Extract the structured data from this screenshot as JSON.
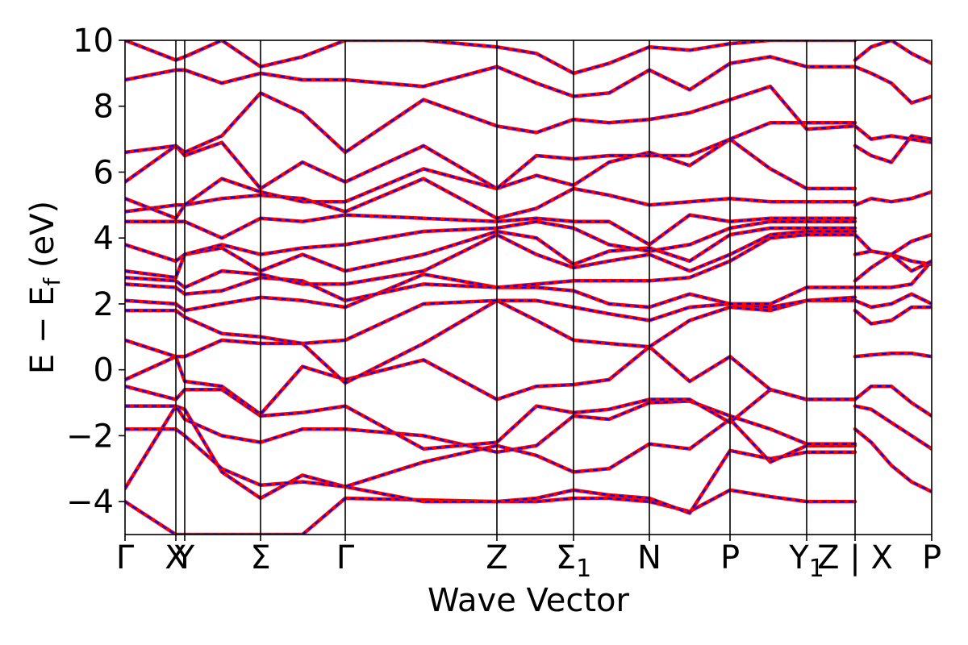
{
  "chart_data": {
    "type": "line",
    "xlabel": "Wave Vector",
    "ylabel": "E − E",
    "ylabel_sub": "f",
    "ylabel_unit": " (eV)",
    "ylim": [
      -5,
      10
    ],
    "yticks": [
      -4,
      -2,
      0,
      2,
      4,
      6,
      8,
      10
    ],
    "grid": false,
    "colors": {
      "dft": "#ff0000",
      "wannier": "#0000ff",
      "axis": "#000000"
    },
    "kpoints": [
      {
        "label": "Γ",
        "sub": "",
        "x": 0.0
      },
      {
        "label": "X",
        "sub": "",
        "x": 0.63
      },
      {
        "label": "Y",
        "sub": "",
        "x": 0.74
      },
      {
        "label": "Σ",
        "sub": "",
        "x": 1.68
      },
      {
        "label": "Γ",
        "sub": "",
        "x": 2.73
      },
      {
        "label": "Z",
        "sub": "",
        "x": 4.61
      },
      {
        "label": "Σ",
        "sub": "1",
        "x": 5.56
      },
      {
        "label": "N",
        "sub": "",
        "x": 6.5
      },
      {
        "label": "P",
        "sub": "",
        "x": 7.5
      },
      {
        "label": "Y",
        "sub": "1",
        "x": 8.45
      },
      {
        "label": "Z | X",
        "sub": "",
        "x": 9.05
      },
      {
        "label": "P",
        "sub": "",
        "x": 10.0
      }
    ],
    "xlim": [
      0,
      10
    ],
    "series": [
      {
        "x": [
          0,
          0.63,
          0.74,
          1.2,
          1.68,
          2.2,
          2.73,
          3.7,
          4.61,
          5.1,
          5.56,
          6.0,
          6.5,
          7.0,
          7.5,
          8.0,
          8.45,
          9.05
        ],
        "y": [
          -4.0,
          -5.0,
          -5.0,
          -5.0,
          -5.0,
          -5.0,
          -3.9,
          -3.95,
          -4.0,
          -4.0,
          -3.9,
          -3.9,
          -4.0,
          -4.3,
          -3.65,
          -3.85,
          -4.0,
          -4.0
        ]
      },
      {
        "x": [
          0,
          0.63,
          0.74,
          1.2,
          1.68,
          2.2,
          2.73,
          3.7,
          4.61,
          5.1,
          5.56,
          6.0,
          6.5,
          7.0,
          7.5,
          8.0,
          8.45,
          9.05
        ],
        "y": [
          -3.6,
          -1.1,
          -1.2,
          -3.1,
          -3.9,
          -3.2,
          -3.55,
          -4.0,
          -4.0,
          -3.9,
          -3.65,
          -3.8,
          -3.9,
          -4.35,
          -2.45,
          -2.7,
          -2.5,
          -2.5
        ]
      },
      {
        "x": [
          0,
          0.63,
          0.74,
          1.2,
          1.68,
          2.2,
          2.73,
          3.7,
          4.61,
          5.1,
          5.56,
          6.0,
          6.5,
          7.0,
          7.5,
          8.0,
          8.45,
          9.05
        ],
        "y": [
          -1.8,
          -1.8,
          -2.0,
          -3.0,
          -3.5,
          -3.4,
          -3.55,
          -2.8,
          -2.3,
          -2.6,
          -3.1,
          -3.0,
          -2.25,
          -2.4,
          -1.5,
          -2.8,
          -2.3,
          -2.3
        ]
      },
      {
        "x": [
          0,
          0.63,
          0.74,
          1.2,
          1.68,
          2.2,
          2.73,
          3.7,
          4.61,
          5.1,
          5.56,
          6.0,
          6.5,
          7.0,
          7.5,
          8.0,
          8.45,
          9.05
        ],
        "y": [
          -1.1,
          -1.1,
          -1.5,
          -2.0,
          -2.2,
          -1.8,
          -1.8,
          -2.0,
          -2.5,
          -2.3,
          -1.4,
          -1.5,
          -1.0,
          -0.95,
          -1.4,
          -1.8,
          -2.25,
          -2.25
        ]
      },
      {
        "x": [
          0,
          0.63,
          0.74,
          1.2,
          1.68,
          2.2,
          2.73,
          3.7,
          4.61,
          5.1,
          5.56,
          6.0,
          6.5,
          7.0,
          7.5,
          8.0,
          8.45,
          9.05
        ],
        "y": [
          -0.5,
          -0.9,
          -0.6,
          -0.6,
          -1.4,
          -1.3,
          -1.1,
          -2.4,
          -2.2,
          -1.1,
          -1.3,
          -1.2,
          -0.9,
          -0.9,
          -1.6,
          -0.6,
          -0.9,
          -0.9
        ]
      },
      {
        "x": [
          0,
          0.63,
          0.74,
          1.2,
          1.68,
          2.2,
          2.73,
          3.7,
          4.61,
          5.1,
          5.56,
          6.0,
          6.5,
          7.0,
          7.5,
          8.0,
          8.45,
          9.05
        ],
        "y": [
          -0.3,
          0.4,
          -0.35,
          -0.5,
          -1.35,
          0.1,
          -0.3,
          0.3,
          -0.9,
          -0.5,
          -0.45,
          -0.3,
          0.7,
          -0.35,
          0.4,
          -0.6,
          -0.9,
          -0.9
        ]
      },
      {
        "x": [
          0,
          0.63,
          0.74,
          1.2,
          1.68,
          2.2,
          2.73,
          3.7,
          4.61,
          5.1,
          5.56,
          6.0,
          6.5,
          7.0,
          7.5,
          8.0,
          8.45,
          9.05
        ],
        "y": [
          0.9,
          0.4,
          0.4,
          0.9,
          0.8,
          0.8,
          -0.4,
          0.8,
          2.1,
          1.5,
          0.9,
          0.8,
          0.7,
          1.5,
          1.9,
          1.8,
          2.1,
          2.1
        ]
      },
      {
        "x": [
          0,
          0.63,
          0.74,
          1.2,
          1.68,
          2.2,
          2.73,
          3.7,
          4.61,
          5.1,
          5.56,
          6.0,
          6.5,
          7.0,
          7.5,
          8.0,
          8.45,
          9.05
        ],
        "y": [
          1.8,
          1.8,
          1.6,
          1.1,
          1.0,
          0.8,
          0.9,
          2.0,
          2.1,
          2.1,
          1.9,
          1.7,
          1.5,
          1.9,
          2.0,
          1.9,
          2.1,
          2.2
        ]
      },
      {
        "x": [
          0,
          0.63,
          0.74,
          1.2,
          1.68,
          2.2,
          2.73,
          3.7,
          4.61,
          5.1,
          5.56,
          6.0,
          6.5,
          7.0,
          7.5,
          8.0,
          8.45,
          9.05
        ],
        "y": [
          2.1,
          2.0,
          1.8,
          2.0,
          2.2,
          2.1,
          1.9,
          2.9,
          2.5,
          2.5,
          2.4,
          2.0,
          1.9,
          2.3,
          2.0,
          2.0,
          2.5,
          2.5
        ]
      },
      {
        "x": [
          0,
          0.63,
          0.74,
          1.2,
          1.68,
          2.2,
          2.73,
          3.7,
          4.61,
          5.1,
          5.56,
          6.0,
          6.5,
          7.0,
          7.5,
          8.0,
          8.45,
          9.05
        ],
        "y": [
          2.6,
          2.5,
          2.3,
          2.4,
          2.8,
          2.7,
          2.1,
          2.6,
          2.5,
          2.6,
          2.7,
          2.7,
          2.7,
          2.8,
          3.3,
          4.0,
          4.1,
          4.1
        ]
      },
      {
        "x": [
          0,
          0.63,
          0.74,
          1.2,
          1.68,
          2.2,
          2.73,
          3.7,
          4.61,
          5.1,
          5.56,
          6.0,
          6.5,
          7.0,
          7.5,
          8.0,
          8.45,
          9.05
        ],
        "y": [
          2.8,
          2.7,
          2.5,
          3.0,
          2.9,
          2.6,
          2.6,
          3.0,
          4.1,
          3.5,
          3.1,
          3.3,
          3.5,
          3.0,
          3.5,
          4.1,
          4.2,
          4.2
        ]
      },
      {
        "x": [
          0,
          0.63,
          0.74,
          1.2,
          1.68,
          2.2,
          2.73,
          3.7,
          4.61,
          5.1,
          5.56,
          6.0,
          6.5,
          7.0,
          7.5,
          8.0,
          8.45,
          9.05
        ],
        "y": [
          3.0,
          2.8,
          3.5,
          3.7,
          3.0,
          3.5,
          3.0,
          3.5,
          4.2,
          4.0,
          3.2,
          3.6,
          3.7,
          3.3,
          4.1,
          4.3,
          4.3,
          4.3
        ]
      },
      {
        "x": [
          0,
          0.63,
          0.74,
          1.2,
          1.68,
          2.2,
          2.73,
          3.7,
          4.61,
          5.1,
          5.56,
          6.0,
          6.5,
          7.0,
          7.5,
          8.0,
          8.45,
          9.05
        ],
        "y": [
          3.8,
          3.3,
          3.5,
          3.8,
          3.5,
          3.7,
          3.8,
          4.2,
          4.3,
          4.5,
          4.3,
          3.8,
          3.6,
          3.8,
          4.3,
          4.5,
          4.5,
          4.5
        ]
      },
      {
        "x": [
          0,
          0.63,
          0.74,
          1.2,
          1.68,
          2.2,
          2.73,
          3.7,
          4.61,
          5.1,
          5.56,
          6.0,
          6.5,
          7.0,
          7.5,
          8.0,
          8.45,
          9.05
        ],
        "y": [
          4.5,
          4.5,
          4.5,
          4.0,
          4.6,
          4.5,
          4.7,
          4.6,
          4.5,
          4.6,
          4.5,
          4.5,
          3.8,
          4.7,
          4.5,
          4.6,
          4.6,
          4.6
        ]
      },
      {
        "x": [
          0,
          0.63,
          0.74,
          1.2,
          1.68,
          2.2,
          2.73,
          3.7,
          4.61,
          5.1,
          5.56,
          6.0,
          6.5,
          7.0,
          7.5,
          8.0,
          8.45,
          9.05
        ],
        "y": [
          4.8,
          5.0,
          5.0,
          5.2,
          5.3,
          5.2,
          4.8,
          5.8,
          4.6,
          4.9,
          5.5,
          5.3,
          5.0,
          5.1,
          5.2,
          5.1,
          5.1,
          5.1
        ]
      },
      {
        "x": [
          0,
          0.63,
          0.74,
          1.2,
          1.68,
          2.2,
          2.73,
          3.7,
          4.61,
          5.1,
          5.56,
          6.0,
          6.5,
          7.0,
          7.5,
          8.0,
          8.45,
          9.05
        ],
        "y": [
          5.2,
          4.6,
          5.0,
          5.8,
          5.4,
          5.1,
          5.1,
          6.1,
          5.5,
          5.9,
          5.6,
          6.3,
          6.6,
          6.2,
          7.0,
          6.1,
          5.5,
          5.5
        ]
      },
      {
        "x": [
          0,
          0.63,
          0.74,
          1.2,
          1.68,
          2.2,
          2.73,
          3.7,
          4.61,
          5.1,
          5.56,
          6.0,
          6.5,
          7.0,
          7.5,
          8.0,
          8.45,
          9.05
        ],
        "y": [
          5.7,
          6.8,
          6.5,
          6.9,
          5.5,
          6.3,
          5.7,
          6.8,
          5.5,
          6.5,
          6.4,
          6.5,
          6.5,
          6.5,
          7.0,
          7.5,
          7.5,
          7.5
        ]
      },
      {
        "x": [
          0,
          0.63,
          0.74,
          1.2,
          1.68,
          2.2,
          2.73,
          3.7,
          4.61,
          5.1,
          5.56,
          6.0,
          6.5,
          7.0,
          7.5,
          8.0,
          8.45,
          9.05
        ],
        "y": [
          6.6,
          6.8,
          6.6,
          7.1,
          8.4,
          7.8,
          6.6,
          8.2,
          7.4,
          7.2,
          7.6,
          7.5,
          7.6,
          7.8,
          8.2,
          8.6,
          7.3,
          7.4
        ]
      },
      {
        "x": [
          0,
          0.63,
          0.74,
          1.2,
          1.68,
          2.2,
          2.73,
          3.7,
          4.61,
          5.1,
          5.56,
          6.0,
          6.5,
          7.0,
          7.5,
          8.0,
          8.45,
          9.05
        ],
        "y": [
          8.8,
          9.1,
          9.1,
          8.7,
          9.0,
          8.8,
          8.8,
          8.6,
          9.2,
          8.7,
          8.3,
          8.4,
          9.1,
          8.5,
          9.3,
          9.5,
          9.2,
          9.2
        ]
      },
      {
        "x": [
          0,
          0.63,
          0.74,
          1.2,
          1.68,
          2.2,
          2.73,
          3.7,
          4.61,
          5.1,
          5.56,
          6.0,
          6.5,
          7.0,
          7.5,
          8.0,
          8.45,
          9.05
        ],
        "y": [
          10.0,
          9.4,
          9.5,
          10.0,
          9.2,
          9.5,
          10.0,
          10.0,
          9.8,
          9.6,
          9.0,
          9.3,
          9.8,
          9.7,
          9.9,
          10.0,
          10.0,
          10.0
        ]
      },
      {
        "x": [
          9.05,
          9.25,
          9.5,
          9.75,
          10.0
        ],
        "y": [
          -1.8,
          -2.2,
          -2.9,
          -3.4,
          -3.7
        ]
      },
      {
        "x": [
          9.05,
          9.25,
          9.5,
          9.75,
          10.0
        ],
        "y": [
          -1.1,
          -1.2,
          -1.6,
          -2.0,
          -2.4
        ]
      },
      {
        "x": [
          9.05,
          9.25,
          9.5,
          9.75,
          10.0
        ],
        "y": [
          -0.9,
          -0.5,
          -0.5,
          -1.0,
          -1.4
        ]
      },
      {
        "x": [
          9.05,
          9.25,
          9.5,
          9.75,
          10.0
        ],
        "y": [
          0.4,
          0.45,
          0.5,
          0.5,
          0.4
        ]
      },
      {
        "x": [
          9.05,
          9.25,
          9.5,
          9.75,
          10.0
        ],
        "y": [
          1.8,
          1.4,
          1.5,
          1.9,
          1.9
        ]
      },
      {
        "x": [
          9.05,
          9.25,
          9.5,
          9.75,
          10.0
        ],
        "y": [
          2.1,
          1.9,
          2.0,
          2.3,
          2.0
        ]
      },
      {
        "x": [
          9.05,
          9.25,
          9.5,
          9.75,
          10.0
        ],
        "y": [
          2.5,
          2.5,
          2.5,
          2.6,
          3.3
        ]
      },
      {
        "x": [
          9.05,
          9.25,
          9.5,
          9.75,
          10.0
        ],
        "y": [
          2.7,
          3.1,
          3.5,
          3.3,
          3.2
        ]
      },
      {
        "x": [
          9.05,
          9.25,
          9.5,
          9.75,
          10.0
        ],
        "y": [
          3.5,
          3.6,
          3.5,
          3.0,
          3.3
        ]
      },
      {
        "x": [
          9.05,
          9.25,
          9.5,
          9.75,
          10.0
        ],
        "y": [
          4.1,
          3.6,
          3.5,
          3.9,
          4.1
        ]
      },
      {
        "x": [
          9.05,
          9.25,
          9.5,
          9.75,
          10.0
        ],
        "y": [
          5.0,
          5.2,
          5.1,
          5.2,
          5.4
        ]
      },
      {
        "x": [
          9.05,
          9.25,
          9.5,
          9.75,
          10.0
        ],
        "y": [
          6.8,
          6.5,
          6.3,
          7.1,
          7.0
        ]
      },
      {
        "x": [
          9.05,
          9.25,
          9.5,
          9.75,
          10.0
        ],
        "y": [
          7.4,
          7.0,
          7.1,
          7.0,
          6.9
        ]
      },
      {
        "x": [
          9.05,
          9.25,
          9.5,
          9.75,
          10.0
        ],
        "y": [
          9.2,
          9.0,
          8.7,
          8.1,
          8.3
        ]
      },
      {
        "x": [
          9.05,
          9.25,
          9.5,
          9.75,
          10.0
        ],
        "y": [
          9.4,
          9.8,
          10.0,
          9.6,
          9.3
        ]
      }
    ]
  }
}
